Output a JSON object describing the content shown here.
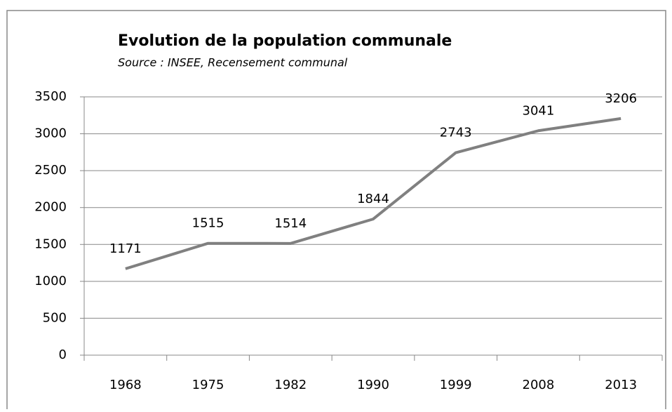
{
  "chart_data": {
    "type": "line",
    "title": "Evolution de la population communale",
    "subtitle": "Source : INSEE, Recensement communal",
    "categories": [
      "1968",
      "1975",
      "1982",
      "1990",
      "1999",
      "2008",
      "2013"
    ],
    "values": [
      1171,
      1515,
      1514,
      1844,
      2743,
      3041,
      3206
    ],
    "color": "#808080",
    "ylim": [
      0,
      3500
    ],
    "yticks": [
      0,
      500,
      1000,
      1500,
      2000,
      2500,
      3000,
      3500
    ],
    "grid": true
  }
}
